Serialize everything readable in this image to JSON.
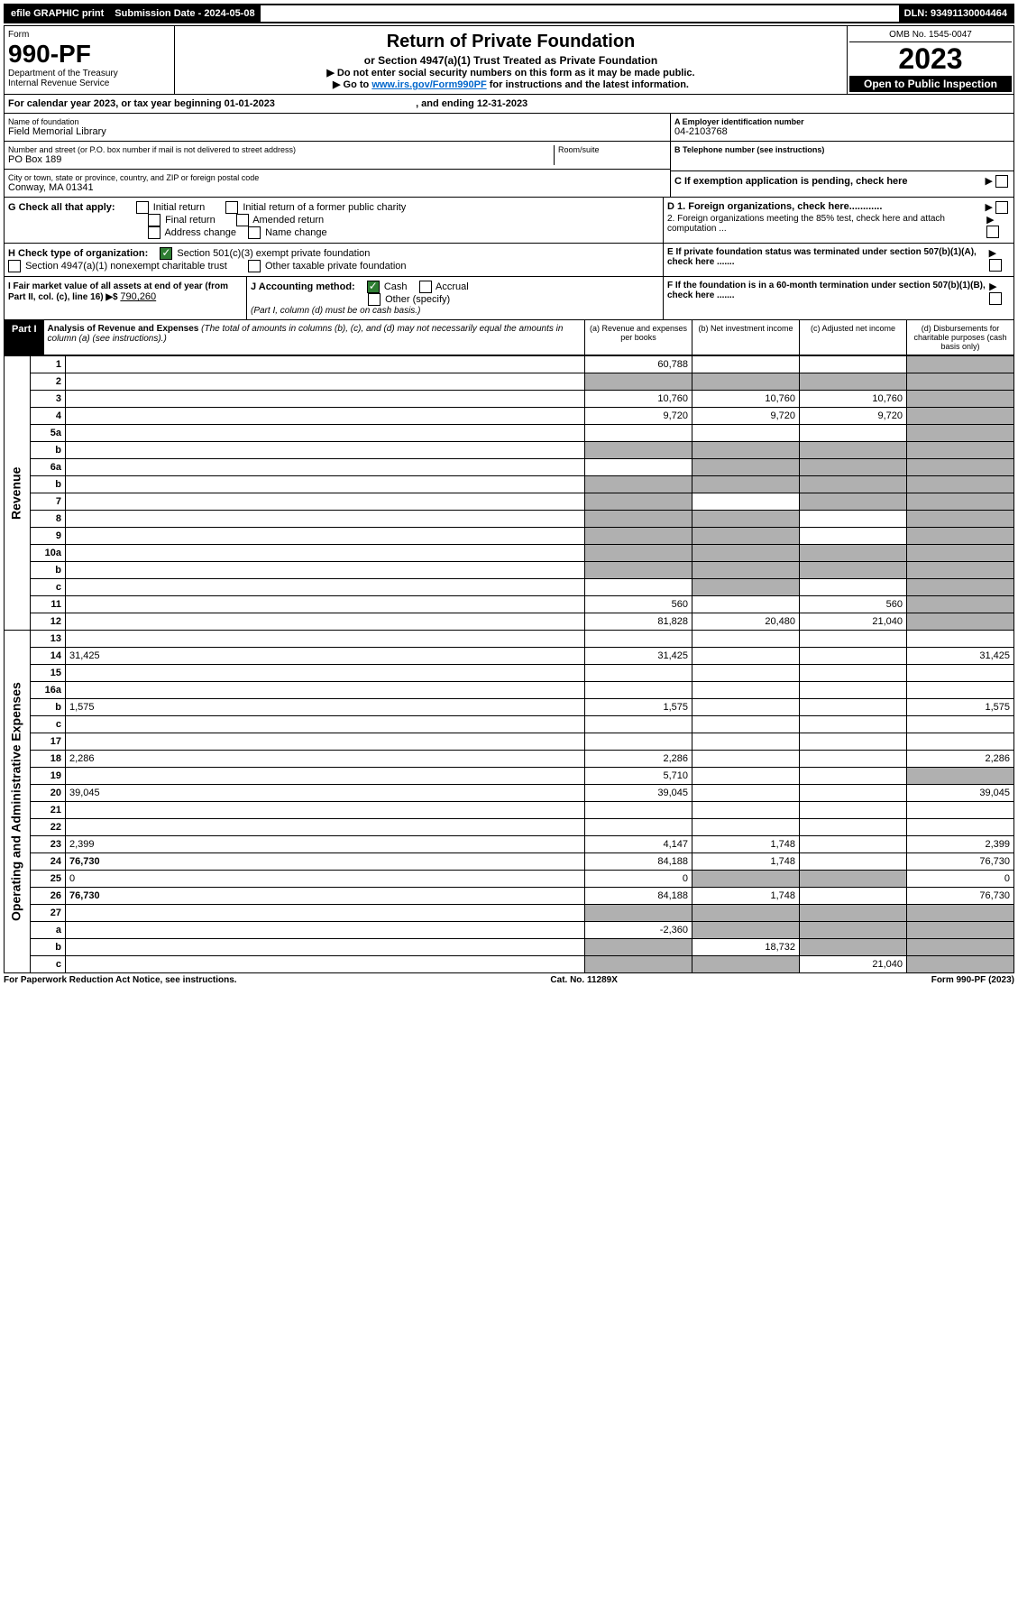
{
  "top_bar": {
    "efile": "efile GRAPHIC print",
    "submission": "Submission Date - 2024-05-08",
    "dln": "DLN: 93491130004464"
  },
  "header": {
    "form_label": "Form",
    "form_number": "990-PF",
    "dept1": "Department of the Treasury",
    "dept2": "Internal Revenue Service",
    "title": "Return of Private Foundation",
    "subtitle": "or Section 4947(a)(1) Trust Treated as Private Foundation",
    "note1": "▶ Do not enter social security numbers on this form as it may be made public.",
    "note2_pre": "▶ Go to ",
    "note2_link": "www.irs.gov/Form990PF",
    "note2_post": " for instructions and the latest information.",
    "omb": "OMB No. 1545-0047",
    "year": "2023",
    "open": "Open to Public Inspection"
  },
  "calendar": {
    "text_pre": "For calendar year 2023, or tax year beginning ",
    "begin": "01-01-2023",
    "text_mid": " , and ending ",
    "end": "12-31-2023"
  },
  "name_block": {
    "lbl": "Name of foundation",
    "val": "Field Memorial Library"
  },
  "ein_block": {
    "lbl": "A Employer identification number",
    "val": "04-2103768"
  },
  "addr_block": {
    "lbl": "Number and street (or P.O. box number if mail is not delivered to street address)",
    "val": "PO Box 189",
    "room_lbl": "Room/suite"
  },
  "phone_block": {
    "lbl": "B Telephone number (see instructions)"
  },
  "city_block": {
    "lbl": "City or town, state or province, country, and ZIP or foreign postal code",
    "val": "Conway, MA  01341"
  },
  "c_block": "C If exemption application is pending, check here",
  "g_block": {
    "lbl": "G Check all that apply:",
    "opts": [
      "Initial return",
      "Initial return of a former public charity",
      "Final return",
      "Amended return",
      "Address change",
      "Name change"
    ]
  },
  "d_block": {
    "d1": "D 1. Foreign organizations, check here............",
    "d2": "2. Foreign organizations meeting the 85% test, check here and attach computation ..."
  },
  "h_block": {
    "lbl": "H Check type of organization:",
    "opt1": "Section 501(c)(3) exempt private foundation",
    "opt2": "Section 4947(a)(1) nonexempt charitable trust",
    "opt3": "Other taxable private foundation"
  },
  "e_block": "E If private foundation status was terminated under section 507(b)(1)(A), check here .......",
  "i_block": {
    "lbl": "I Fair market value of all assets at end of year (from Part II, col. (c), line 16) ▶$ ",
    "val": "790,260"
  },
  "j_block": {
    "lbl": "J Accounting method:",
    "opt1": "Cash",
    "opt2": "Accrual",
    "opt3": "Other (specify)",
    "note": "(Part I, column (d) must be on cash basis.)"
  },
  "f_block": "F If the foundation is in a 60-month termination under section 507(b)(1)(B), check here .......",
  "part1": {
    "label": "Part I",
    "title": "Analysis of Revenue and Expenses",
    "sub": "(The total of amounts in columns (b), (c), and (d) may not necessarily equal the amounts in column (a) (see instructions).)",
    "cols": {
      "a": "(a) Revenue and expenses per books",
      "b": "(b) Net investment income",
      "c": "(c) Adjusted net income",
      "d": "(d) Disbursements for charitable purposes (cash basis only)"
    }
  },
  "side_labels": {
    "revenue": "Revenue",
    "expenses": "Operating and Administrative Expenses"
  },
  "rows": [
    {
      "n": "1",
      "d": "",
      "a": "60,788",
      "b": "",
      "c": "",
      "shade": [
        "d"
      ]
    },
    {
      "n": "2",
      "d": "",
      "a": "",
      "b": "",
      "c": "",
      "shade": [
        "a",
        "b",
        "c",
        "d"
      ],
      "bold": true,
      "allshade": true
    },
    {
      "n": "3",
      "d": "",
      "a": "10,760",
      "b": "10,760",
      "c": "10,760",
      "shade": [
        "d"
      ]
    },
    {
      "n": "4",
      "d": "",
      "a": "9,720",
      "b": "9,720",
      "c": "9,720",
      "shade": [
        "d"
      ]
    },
    {
      "n": "5a",
      "d": "",
      "a": "",
      "b": "",
      "c": "",
      "shade": [
        "d"
      ]
    },
    {
      "n": "b",
      "d": "",
      "a": "",
      "b": "",
      "c": "",
      "shade": [
        "a",
        "b",
        "c",
        "d"
      ],
      "inline": true
    },
    {
      "n": "6a",
      "d": "",
      "a": "",
      "b": "",
      "c": "",
      "shade": [
        "b",
        "c",
        "d"
      ]
    },
    {
      "n": "b",
      "d": "",
      "a": "",
      "b": "",
      "c": "",
      "shade": [
        "a",
        "b",
        "c",
        "d"
      ],
      "inline": true
    },
    {
      "n": "7",
      "d": "",
      "a": "",
      "b": "",
      "c": "",
      "shade": [
        "a",
        "c",
        "d"
      ]
    },
    {
      "n": "8",
      "d": "",
      "a": "",
      "b": "",
      "c": "",
      "shade": [
        "a",
        "b",
        "d"
      ]
    },
    {
      "n": "9",
      "d": "",
      "a": "",
      "b": "",
      "c": "",
      "shade": [
        "a",
        "b",
        "d"
      ]
    },
    {
      "n": "10a",
      "d": "",
      "a": "",
      "b": "",
      "c": "",
      "shade": [
        "a",
        "b",
        "c",
        "d"
      ],
      "inline": true
    },
    {
      "n": "b",
      "d": "",
      "a": "",
      "b": "",
      "c": "",
      "shade": [
        "a",
        "b",
        "c",
        "d"
      ],
      "inline": true
    },
    {
      "n": "c",
      "d": "",
      "a": "",
      "b": "",
      "c": "",
      "shade": [
        "b",
        "d"
      ]
    },
    {
      "n": "11",
      "d": "",
      "a": "560",
      "b": "",
      "c": "560",
      "shade": [
        "d"
      ]
    },
    {
      "n": "12",
      "d": "",
      "a": "81,828",
      "b": "20,480",
      "c": "21,040",
      "shade": [
        "d"
      ],
      "bold": true
    },
    {
      "n": "13",
      "d": "",
      "a": "",
      "b": "",
      "c": ""
    },
    {
      "n": "14",
      "d": "31,425",
      "a": "31,425",
      "b": "",
      "c": ""
    },
    {
      "n": "15",
      "d": "",
      "a": "",
      "b": "",
      "c": ""
    },
    {
      "n": "16a",
      "d": "",
      "a": "",
      "b": "",
      "c": ""
    },
    {
      "n": "b",
      "d": "1,575",
      "a": "1,575",
      "b": "",
      "c": ""
    },
    {
      "n": "c",
      "d": "",
      "a": "",
      "b": "",
      "c": ""
    },
    {
      "n": "17",
      "d": "",
      "a": "",
      "b": "",
      "c": ""
    },
    {
      "n": "18",
      "d": "2,286",
      "a": "2,286",
      "b": "",
      "c": ""
    },
    {
      "n": "19",
      "d": "",
      "a": "5,710",
      "b": "",
      "c": "",
      "shade": [
        "d"
      ]
    },
    {
      "n": "20",
      "d": "39,045",
      "a": "39,045",
      "b": "",
      "c": ""
    },
    {
      "n": "21",
      "d": "",
      "a": "",
      "b": "",
      "c": ""
    },
    {
      "n": "22",
      "d": "",
      "a": "",
      "b": "",
      "c": ""
    },
    {
      "n": "23",
      "d": "2,399",
      "a": "4,147",
      "b": "1,748",
      "c": ""
    },
    {
      "n": "24",
      "d": "76,730",
      "a": "84,188",
      "b": "1,748",
      "c": "",
      "bold": true
    },
    {
      "n": "25",
      "d": "0",
      "a": "0",
      "b": "",
      "c": "",
      "shade": [
        "b",
        "c"
      ]
    },
    {
      "n": "26",
      "d": "76,730",
      "a": "84,188",
      "b": "1,748",
      "c": "",
      "bold": true
    },
    {
      "n": "27",
      "d": "",
      "a": "",
      "b": "",
      "c": "",
      "shade": [
        "a",
        "b",
        "c",
        "d"
      ]
    },
    {
      "n": "a",
      "d": "",
      "a": "-2,360",
      "b": "",
      "c": "",
      "shade": [
        "b",
        "c",
        "d"
      ],
      "bold": true
    },
    {
      "n": "b",
      "d": "",
      "a": "",
      "b": "18,732",
      "c": "",
      "shade": [
        "a",
        "c",
        "d"
      ],
      "bold": true
    },
    {
      "n": "c",
      "d": "",
      "a": "",
      "b": "",
      "c": "21,040",
      "shade": [
        "a",
        "b",
        "d"
      ],
      "bold": true
    }
  ],
  "footer": {
    "left": "For Paperwork Reduction Act Notice, see instructions.",
    "mid": "Cat. No. 11289X",
    "right": "Form 990-PF (2023)"
  }
}
